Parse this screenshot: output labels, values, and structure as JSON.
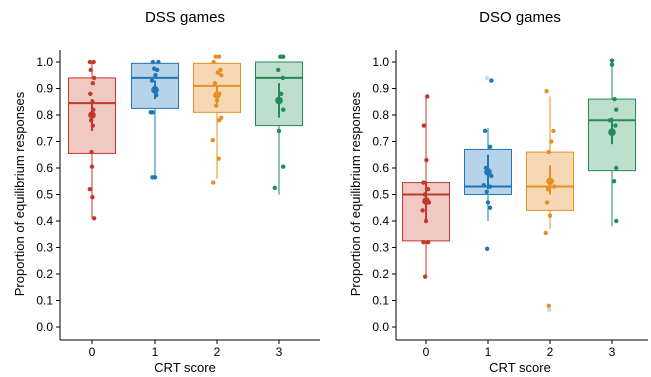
{
  "chart_data": [
    {
      "type": "boxplot",
      "title": "DSS games",
      "xlabel": "CRT score",
      "ylabel": "Proportion of equilibrium responses",
      "ylim": [
        0,
        1.0
      ],
      "yticks": [
        "0.0",
        "0.1",
        "0.2",
        "0.3",
        "0.4",
        "0.5",
        "0.6",
        "0.7",
        "0.8",
        "0.9",
        "1.0"
      ],
      "categories": [
        "0",
        "1",
        "2",
        "3"
      ],
      "groups": [
        {
          "category": "0",
          "color": "#c0392b",
          "fill": "#f1c9c3",
          "q1": 0.655,
          "median": 0.845,
          "q3": 0.94,
          "whisker_low": 0.41,
          "whisker_high": 1.0,
          "mean": 0.8,
          "ci": [
            0.74,
            0.86
          ],
          "points": [
            [
              -0.05,
              1.0
            ],
            [
              0.04,
              1.0
            ],
            [
              -0.03,
              0.97
            ],
            [
              0.05,
              0.94
            ],
            [
              0.02,
              0.92
            ],
            [
              -0.04,
              0.88
            ],
            [
              0.01,
              0.85
            ],
            [
              0.03,
              0.82
            ],
            [
              -0.02,
              0.78
            ],
            [
              0.02,
              0.76
            ],
            [
              -0.01,
              0.66
            ],
            [
              0.0,
              0.605
            ],
            [
              -0.05,
              0.52
            ],
            [
              0.01,
              0.49
            ],
            [
              0.05,
              0.41
            ]
          ]
        },
        {
          "category": "1",
          "color": "#1f77b4",
          "fill": "#b7d3ea",
          "q1": 0.825,
          "median": 0.94,
          "q3": 0.995,
          "whisker_low": 0.56,
          "whisker_high": 1.0,
          "mean": 0.895,
          "ci": [
            0.86,
            0.93
          ],
          "points": [
            [
              -0.05,
              1.0
            ],
            [
              0.08,
              1.0
            ],
            [
              -0.02,
              0.975
            ],
            [
              0.05,
              0.97
            ],
            [
              0.01,
              0.95
            ],
            [
              -0.07,
              0.93
            ],
            [
              0.02,
              0.89
            ],
            [
              -0.06,
              0.81
            ],
            [
              -0.1,
              0.81
            ],
            [
              0.03,
              0.875
            ],
            [
              -0.06,
              0.565
            ],
            [
              0.0,
              0.565
            ]
          ],
          "light_points": [
            [
              0.0,
              0.565
            ]
          ]
        },
        {
          "category": "2",
          "color": "#e69023",
          "fill": "#f6d9b4",
          "q1": 0.81,
          "median": 0.91,
          "q3": 0.995,
          "whisker_low": 0.56,
          "whisker_high": 1.0,
          "mean": 0.875,
          "ci": [
            0.84,
            0.91
          ],
          "points": [
            [
              -0.08,
              1.0
            ],
            [
              -0.03,
              1.02
            ],
            [
              0.05,
              1.02
            ],
            [
              0.08,
              0.97
            ],
            [
              0.02,
              0.96
            ],
            [
              0.1,
              0.95
            ],
            [
              -0.05,
              0.92
            ],
            [
              0.06,
              0.88
            ],
            [
              0.0,
              0.855
            ],
            [
              -0.02,
              0.835
            ],
            [
              0.1,
              0.79
            ],
            [
              0.05,
              0.78
            ],
            [
              -0.1,
              0.705
            ],
            [
              0.04,
              0.635
            ],
            [
              -0.09,
              0.545
            ]
          ]
        },
        {
          "category": "3",
          "color": "#238b57",
          "fill": "#bddfcb",
          "q1": 0.76,
          "median": 0.94,
          "q3": 1.0,
          "whisker_low": 0.5,
          "whisker_high": 1.0,
          "mean": 0.855,
          "ci": [
            0.79,
            0.92
          ],
          "points": [
            [
              0.03,
              1.02
            ],
            [
              0.07,
              1.02
            ],
            [
              0.1,
              1.02
            ],
            [
              -0.02,
              0.97
            ],
            [
              0.09,
              0.94
            ],
            [
              0.05,
              0.88
            ],
            [
              0.1,
              0.82
            ],
            [
              0.0,
              0.74
            ],
            [
              0.1,
              0.605
            ],
            [
              -0.1,
              0.525
            ]
          ]
        }
      ]
    },
    {
      "type": "boxplot",
      "title": "DSO games",
      "xlabel": "CRT score",
      "ylabel": "Proportion of equilibrium responses",
      "ylim": [
        0,
        1.0
      ],
      "yticks": [
        "0.0",
        "0.1",
        "0.2",
        "0.3",
        "0.4",
        "0.5",
        "0.6",
        "0.7",
        "0.8",
        "0.9",
        "1.0"
      ],
      "categories": [
        "0",
        "1",
        "2",
        "3"
      ],
      "groups": [
        {
          "category": "0",
          "color": "#c0392b",
          "fill": "#f1c9c3",
          "q1": 0.325,
          "median": 0.5,
          "q3": 0.545,
          "whisker_low": 0.19,
          "whisker_high": 0.87,
          "mean": 0.475,
          "ci": [
            0.4,
            0.55
          ],
          "points": [
            [
              0.03,
              0.87
            ],
            [
              -0.05,
              0.76
            ],
            [
              0.01,
              0.63
            ],
            [
              -0.06,
              0.545
            ],
            [
              0.05,
              0.52
            ],
            [
              -0.03,
              0.5
            ],
            [
              0.03,
              0.48
            ],
            [
              0.07,
              0.47
            ],
            [
              -0.08,
              0.44
            ],
            [
              0.0,
              0.4
            ],
            [
              -0.06,
              0.32
            ],
            [
              0.05,
              0.32
            ],
            [
              -0.02,
              0.19
            ]
          ]
        },
        {
          "category": "1",
          "color": "#1f77b4",
          "fill": "#b7d3ea",
          "q1": 0.5,
          "median": 0.53,
          "q3": 0.67,
          "whisker_low": 0.4,
          "whisker_high": 0.75,
          "mean": 0.585,
          "ci": [
            0.52,
            0.65
          ],
          "points": [
            [
              0.08,
              0.93
            ],
            [
              -0.07,
              0.74
            ],
            [
              0.05,
              0.68
            ],
            [
              -0.05,
              0.6
            ],
            [
              0.08,
              0.57
            ],
            [
              -0.1,
              0.535
            ],
            [
              0.05,
              0.53
            ],
            [
              -0.03,
              0.51
            ],
            [
              0.0,
              0.47
            ],
            [
              0.05,
              0.45
            ],
            [
              -0.02,
              0.295
            ]
          ],
          "light_points": [
            [
              -0.02,
              0.94
            ]
          ]
        },
        {
          "category": "2",
          "color": "#e69023",
          "fill": "#f6d9b4",
          "q1": 0.44,
          "median": 0.53,
          "q3": 0.66,
          "whisker_low": 0.37,
          "whisker_high": 0.87,
          "mean": 0.55,
          "ci": [
            0.5,
            0.61
          ],
          "points": [
            [
              -0.08,
              0.89
            ],
            [
              0.08,
              0.74
            ],
            [
              0.03,
              0.7
            ],
            [
              -0.03,
              0.66
            ],
            [
              0.05,
              0.55
            ],
            [
              0.1,
              0.53
            ],
            [
              -0.05,
              0.52
            ],
            [
              -0.07,
              0.47
            ],
            [
              0.0,
              0.42
            ],
            [
              -0.1,
              0.355
            ],
            [
              -0.03,
              0.08
            ]
          ],
          "light_points": [
            [
              -0.02,
              0.065
            ]
          ]
        },
        {
          "category": "3",
          "color": "#238b57",
          "fill": "#bddfcb",
          "q1": 0.59,
          "median": 0.78,
          "q3": 0.86,
          "whisker_low": 0.38,
          "whisker_high": 1.0,
          "mean": 0.735,
          "ci": [
            0.69,
            0.79
          ],
          "points": [
            [
              0.0,
              1.005
            ],
            [
              0.0,
              0.99
            ],
            [
              0.06,
              0.86
            ],
            [
              0.1,
              0.82
            ],
            [
              -0.05,
              0.78
            ],
            [
              0.08,
              0.76
            ],
            [
              -0.02,
              0.73
            ],
            [
              0.1,
              0.6
            ],
            [
              0.05,
              0.55
            ],
            [
              0.1,
              0.4
            ]
          ]
        }
      ]
    }
  ]
}
